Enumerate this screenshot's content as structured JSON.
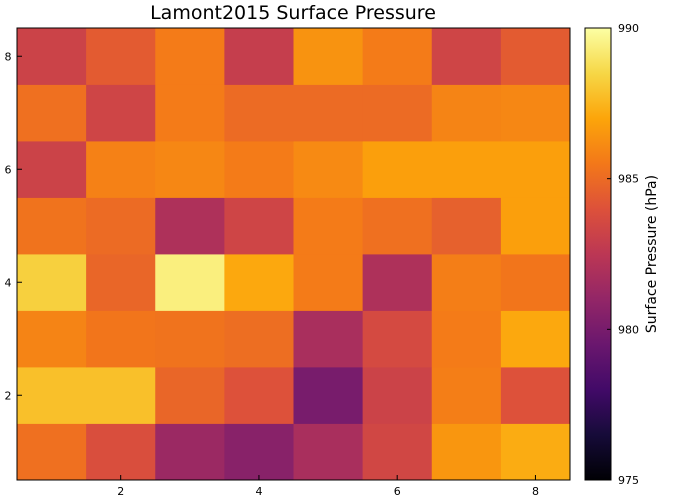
{
  "chart_data": {
    "type": "heatmap",
    "title": "Lamont2015 Surface Pressure",
    "xlabel": "",
    "ylabel": "",
    "x": [
      1,
      2,
      3,
      4,
      5,
      6,
      7,
      8
    ],
    "y": [
      1,
      2,
      3,
      4,
      5,
      6,
      7,
      8
    ],
    "xlim": [
      0.5,
      8.5
    ],
    "ylim": [
      0.5,
      8.5
    ],
    "xticks": [
      2,
      4,
      6,
      8
    ],
    "yticks": [
      2,
      4,
      6,
      8
    ],
    "values": [
      [
        985.2,
        983.8,
        981.3,
        980.6,
        981.8,
        983.4,
        986.5,
        987.2
      ],
      [
        987.8,
        987.8,
        984.8,
        984.0,
        980.0,
        983.2,
        985.7,
        984.0
      ],
      [
        985.9,
        985.4,
        985.3,
        985.1,
        981.8,
        983.6,
        985.6,
        987.1
      ],
      [
        988.3,
        984.8,
        989.4,
        987.1,
        985.6,
        982.0,
        985.7,
        985.4
      ],
      [
        985.3,
        985.0,
        982.0,
        983.3,
        985.6,
        985.2,
        984.6,
        986.8
      ],
      [
        983.2,
        985.8,
        986.0,
        985.6,
        986.1,
        986.8,
        986.8,
        986.8
      ],
      [
        985.2,
        983.3,
        985.6,
        985.0,
        985.0,
        985.0,
        985.9,
        986.0
      ],
      [
        983.2,
        984.4,
        985.6,
        982.9,
        986.4,
        985.6,
        983.3,
        984.4
      ]
    ],
    "colorbar": {
      "label": "Surface Pressure (hPa)",
      "range": [
        975,
        990
      ],
      "ticks": [
        975,
        980,
        985,
        990
      ],
      "colormap": "inferno"
    },
    "grid": false,
    "legend": "none"
  }
}
